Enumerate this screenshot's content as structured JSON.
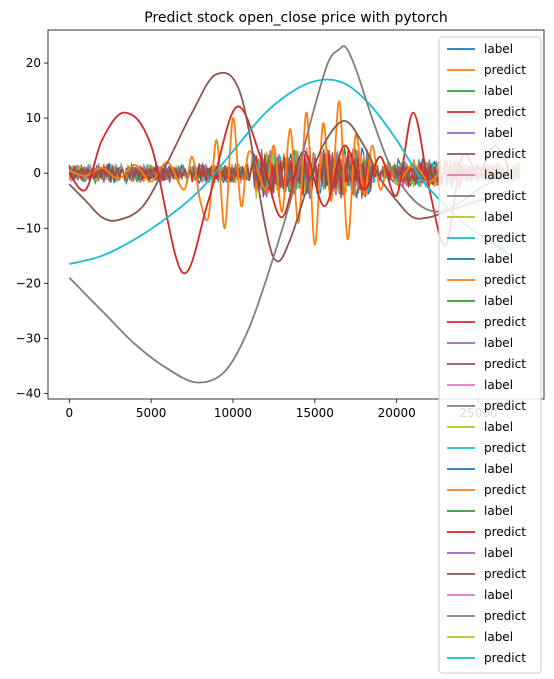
{
  "chart_data": {
    "type": "line",
    "title": "Predict stock open_close price with pytorch",
    "xlabel": "",
    "ylabel": "",
    "xlim": [
      -1300,
      29000
    ],
    "ylim": [
      -41,
      26
    ],
    "xticks": [
      0,
      5000,
      10000,
      15000,
      20000,
      25000
    ],
    "yticks": [
      20,
      10,
      0,
      -10,
      -20,
      -30,
      -40
    ],
    "grid": false,
    "legend_position": "right",
    "legend": [
      {
        "label": "label",
        "color": "#1f77b4"
      },
      {
        "label": "predict",
        "color": "#ff7f0e"
      },
      {
        "label": "label",
        "color": "#2ca02c"
      },
      {
        "label": "predict",
        "color": "#d62728"
      },
      {
        "label": "label",
        "color": "#9467bd"
      },
      {
        "label": "predict",
        "color": "#8c564b"
      },
      {
        "label": "label",
        "color": "#e377c2"
      },
      {
        "label": "predict",
        "color": "#7f7f7f"
      },
      {
        "label": "label",
        "color": "#bcbd22"
      },
      {
        "label": "predict",
        "color": "#17becf"
      },
      {
        "label": "label",
        "color": "#1f77b4"
      },
      {
        "label": "predict",
        "color": "#ff7f0e"
      },
      {
        "label": "label",
        "color": "#2ca02c"
      },
      {
        "label": "predict",
        "color": "#d62728"
      },
      {
        "label": "label",
        "color": "#9467bd"
      },
      {
        "label": "predict",
        "color": "#8c564b"
      },
      {
        "label": "label",
        "color": "#e377c2"
      },
      {
        "label": "predict",
        "color": "#7f7f7f"
      },
      {
        "label": "label",
        "color": "#bcbd22"
      },
      {
        "label": "predict",
        "color": "#17becf"
      },
      {
        "label": "label",
        "color": "#1f77b4"
      },
      {
        "label": "predict",
        "color": "#ff7f0e"
      },
      {
        "label": "label",
        "color": "#2ca02c"
      },
      {
        "label": "predict",
        "color": "#d62728"
      },
      {
        "label": "label",
        "color": "#9467bd"
      },
      {
        "label": "predict",
        "color": "#8c564b"
      },
      {
        "label": "label",
        "color": "#e377c2"
      },
      {
        "label": "predict",
        "color": "#7f7f7f"
      },
      {
        "label": "label",
        "color": "#bcbd22"
      },
      {
        "label": "predict",
        "color": "#17becf"
      }
    ],
    "series": [
      {
        "color": "#ff7f0e",
        "x": [
          0,
          1000,
          2000,
          3000,
          4000,
          5000,
          6000,
          7000,
          7500,
          8000,
          8500,
          9000,
          9500,
          10000,
          10500,
          11000,
          12000,
          12500,
          13000,
          13500,
          14000,
          14500,
          15000,
          15500,
          16000,
          16500,
          17000,
          17500,
          18000,
          18500,
          19000,
          19500,
          20000,
          21000,
          22000,
          23000,
          24000,
          25000,
          26000,
          27000
        ],
        "y": [
          0.5,
          -0.5,
          1,
          -1,
          1.5,
          -1.5,
          2,
          -3,
          3,
          -5,
          -8,
          6,
          -10,
          10,
          -6,
          4,
          -3,
          5,
          -7,
          8,
          -9,
          11,
          -13,
          9,
          -5,
          13,
          -12,
          7,
          -4,
          5,
          -3,
          2,
          -2,
          1.5,
          -1.5,
          1,
          -1,
          0.5,
          -0.5,
          0
        ]
      },
      {
        "color": "#d62728",
        "x": [
          0,
          1000,
          2000,
          3400,
          5000,
          6900,
          8500,
          10200,
          11800,
          13000,
          14300,
          15600,
          16800,
          18000,
          19000,
          20000,
          21000,
          22000,
          23000,
          24000,
          25000,
          26000,
          27000
        ],
        "y": [
          0,
          -3,
          6,
          11,
          5,
          -18,
          -5,
          12,
          2,
          -8,
          4,
          -6,
          5,
          -3,
          3,
          -4,
          11,
          -3,
          -13,
          3,
          0,
          5,
          0
        ]
      },
      {
        "color": "#8c564b",
        "x": [
          0,
          1000,
          2000,
          3000,
          4500,
          6000,
          7500,
          9000,
          10500,
          12000,
          12700,
          13500,
          14500,
          15500,
          16800,
          18000,
          19000,
          20000,
          21000,
          22000,
          23000,
          24000,
          25000,
          26000,
          27000
        ],
        "y": [
          -2,
          -5,
          -8,
          -8.5,
          -6,
          2,
          11,
          18,
          14,
          -10,
          -16,
          -12,
          -3,
          5,
          9.5,
          5,
          -1,
          -5,
          -8,
          -8,
          -7,
          -6,
          -5,
          -4,
          -3
        ]
      },
      {
        "color": "#17becf",
        "x": [
          0,
          2000,
          4000,
          6000,
          8000,
          10000,
          12000,
          14000,
          15600,
          17000,
          18500,
          20000,
          21500,
          23000,
          24500,
          26000,
          27000
        ],
        "y": [
          -16.5,
          -15,
          -12,
          -8,
          -3,
          4,
          11,
          15.5,
          17,
          16,
          12,
          6,
          -1,
          -6,
          -10,
          -13,
          -15
        ]
      },
      {
        "color": "#7f7f7f",
        "x": [
          0,
          2000,
          4000,
          6000,
          7800,
          9500,
          11000,
          12500,
          13700,
          14800,
          15800,
          16500,
          16900,
          17500,
          18500,
          19500,
          20500,
          21500,
          22500,
          23500,
          24500,
          25500,
          27000
        ],
        "y": [
          -19,
          -25,
          -31,
          -35.5,
          -38,
          -36,
          -28,
          -15,
          -3,
          10,
          20,
          22.5,
          22.8,
          19,
          10,
          2,
          -3,
          -6,
          -7,
          -6,
          -4,
          -2,
          0
        ]
      }
    ],
    "noise_colors": [
      "#1f77b4",
      "#2ca02c",
      "#9467bd",
      "#e377c2",
      "#bcbd22",
      "#ff7f0e",
      "#17becf",
      "#7f7f7f",
      "#d62728",
      "#8c564b"
    ]
  }
}
